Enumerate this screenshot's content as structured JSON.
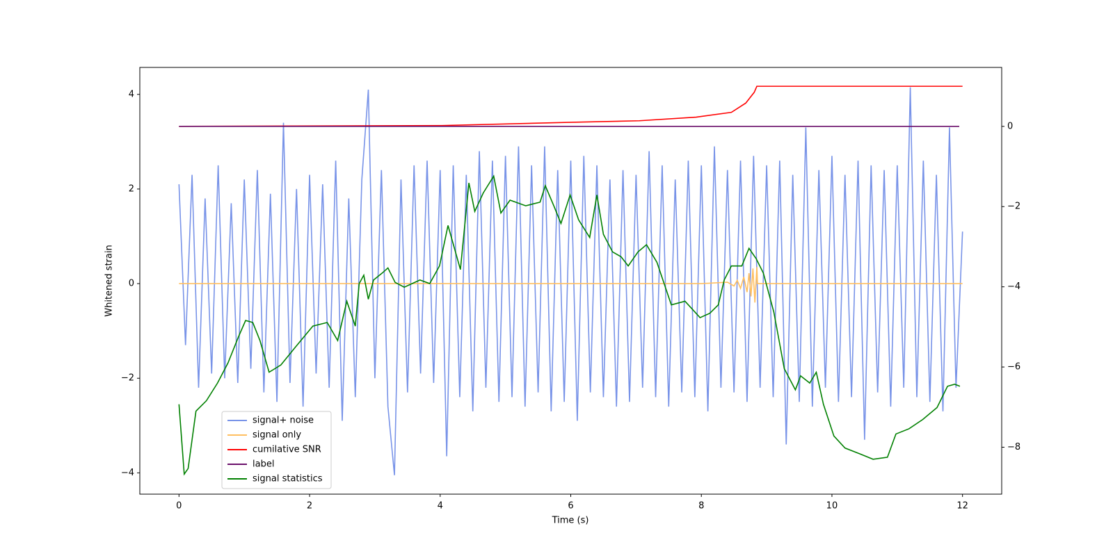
{
  "chart_data": {
    "type": "line",
    "xlabel": "Time (s)",
    "ylabel": "Whitened strain",
    "xlim": [
      -0.6,
      12.6
    ],
    "xticks": [
      0,
      2,
      4,
      6,
      8,
      10,
      12
    ],
    "ylim": [
      -4.45,
      4.57
    ],
    "yticks": [
      -4,
      -2,
      0,
      2,
      4
    ],
    "y2lim": [
      -9.17,
      1.47
    ],
    "y2ticks": [
      -8,
      -6,
      -4,
      -2,
      0
    ],
    "legend": "lower left",
    "series": [
      {
        "name": "signal+ noise",
        "color": "#7893e8",
        "x": [
          0,
          0.1,
          0.2,
          0.3,
          0.4,
          0.5,
          0.6,
          0.7,
          0.8,
          0.9,
          1,
          1.1,
          1.2,
          1.3,
          1.4,
          1.5,
          1.6,
          1.7,
          1.8,
          1.9,
          2,
          2.1,
          2.2,
          2.3,
          2.4,
          2.5,
          2.6,
          2.7,
          2.8,
          2.9,
          3,
          3.1,
          3.2,
          3.3,
          3.4,
          3.5,
          3.6,
          3.7,
          3.8,
          3.9,
          4,
          4.1,
          4.2,
          4.3,
          4.4,
          4.5,
          4.6,
          4.7,
          4.8,
          4.9,
          5,
          5.1,
          5.2,
          5.3,
          5.4,
          5.5,
          5.6,
          5.7,
          5.8,
          5.9,
          6,
          6.1,
          6.2,
          6.3,
          6.4,
          6.5,
          6.6,
          6.7,
          6.8,
          6.9,
          7,
          7.1,
          7.2,
          7.3,
          7.4,
          7.5,
          7.6,
          7.7,
          7.8,
          7.9,
          8,
          8.1,
          8.2,
          8.3,
          8.4,
          8.5,
          8.6,
          8.7,
          8.8,
          8.9,
          9,
          9.1,
          9.2,
          9.3,
          9.4,
          9.5,
          9.6,
          9.7,
          9.8,
          9.9,
          10,
          10.1,
          10.2,
          10.3,
          10.4,
          10.5,
          10.6,
          10.7,
          10.8,
          10.9,
          11,
          11.1,
          11.2,
          11.3,
          11.4,
          11.5,
          11.6,
          11.7,
          11.8,
          11.9,
          12
        ],
        "values": [
          2.1,
          -1.3,
          2.3,
          -2.2,
          1.8,
          -1.9,
          2.5,
          -2.0,
          1.7,
          -2.1,
          2.2,
          -1.8,
          2.4,
          -2.3,
          1.9,
          -2.5,
          3.4,
          -2.1,
          2.0,
          -2.6,
          2.3,
          -1.9,
          2.1,
          -2.2,
          2.6,
          -2.9,
          1.8,
          -2.4,
          2.2,
          4.1,
          -2.0,
          2.4,
          -2.6,
          -4.05,
          2.2,
          -2.3,
          2.5,
          -1.9,
          2.6,
          -2.1,
          2.4,
          -3.65,
          2.5,
          -2.4,
          2.3,
          -2.7,
          2.8,
          -2.2,
          2.6,
          -2.5,
          2.7,
          -2.4,
          2.9,
          -2.6,
          2.5,
          -2.3,
          2.9,
          -2.7,
          2.4,
          -2.5,
          2.6,
          -2.9,
          2.7,
          -2.3,
          2.5,
          -2.4,
          2.2,
          -2.6,
          2.4,
          -2.5,
          2.3,
          -2.2,
          2.8,
          -2.4,
          2.5,
          -2.6,
          2.2,
          -2.3,
          2.6,
          -2.4,
          2.5,
          -2.7,
          2.9,
          -2.2,
          2.4,
          -2.3,
          2.6,
          -2.5,
          2.7,
          -2.2,
          2.5,
          -2.4,
          2.6,
          -3.4,
          2.3,
          -2.5,
          3.3,
          -2.6,
          2.4,
          -2.2,
          2.7,
          -2.5,
          2.3,
          -2.4,
          2.6,
          -3.3,
          2.5,
          -2.3,
          2.4,
          -2.6,
          2.5,
          -2.2,
          4.15,
          -2.4,
          2.6,
          -2.5,
          2.3,
          -2.7,
          3.3,
          -2.2,
          1.1
        ]
      },
      {
        "name": "signal only",
        "color": "#ffbf60",
        "x": [
          0,
          8,
          8.4,
          8.5,
          8.55,
          8.6,
          8.65,
          8.7,
          8.73,
          8.76,
          8.79,
          8.82,
          8.85,
          8.86,
          12
        ],
        "values": [
          0,
          0,
          0.03,
          -0.05,
          0.07,
          -0.1,
          0.14,
          -0.18,
          0.22,
          -0.27,
          0.32,
          -0.4,
          0.35,
          0,
          0
        ]
      },
      {
        "name": "cumilative SNR",
        "color": "#ff0000",
        "axis": "y2",
        "x": [
          0,
          4,
          5.96,
          7.05,
          7.92,
          8.46,
          8.68,
          8.81,
          8.85,
          12
        ],
        "values": [
          0,
          0.02,
          0.1,
          0.14,
          0.23,
          0.35,
          0.58,
          0.85,
          1.0,
          1.0
        ]
      },
      {
        "name": "label",
        "color": "#6a0f6a",
        "axis": "y2",
        "x": [
          0,
          11.95
        ],
        "values": [
          0,
          0
        ]
      },
      {
        "name": "signal statistics",
        "color": "#008000",
        "axis": "y2",
        "x": [
          0,
          0.08,
          0.14,
          0.26,
          0.42,
          0.59,
          0.75,
          0.91,
          1.02,
          1.13,
          1.24,
          1.38,
          1.56,
          1.78,
          2.05,
          2.27,
          2.43,
          2.57,
          2.7,
          2.76,
          2.83,
          2.9,
          2.98,
          3.11,
          3.2,
          3.31,
          3.45,
          3.69,
          3.84,
          3.99,
          4.12,
          4.31,
          4.44,
          4.53,
          4.66,
          4.82,
          4.93,
          5.07,
          5.31,
          5.53,
          5.61,
          5.74,
          5.85,
          5.99,
          6.12,
          6.29,
          6.4,
          6.5,
          6.64,
          6.77,
          6.88,
          7.03,
          7.16,
          7.32,
          7.54,
          7.75,
          7.98,
          8.13,
          8.26,
          8.35,
          8.46,
          8.62,
          8.73,
          8.84,
          8.95,
          9.11,
          9.27,
          9.44,
          9.52,
          9.66,
          9.76,
          9.87,
          10.03,
          10.2,
          10.42,
          10.63,
          10.85,
          10.98,
          11.18,
          11.39,
          11.61,
          11.77,
          11.88,
          11.96
        ],
        "values": [
          -6.93,
          -8.67,
          -8.53,
          -7.1,
          -6.84,
          -6.4,
          -5.9,
          -5.25,
          -4.84,
          -4.89,
          -5.34,
          -6.13,
          -5.95,
          -5.51,
          -4.98,
          -4.89,
          -5.34,
          -4.36,
          -4.98,
          -3.92,
          -3.71,
          -4.31,
          -3.83,
          -3.66,
          -3.53,
          -3.89,
          -4.01,
          -3.83,
          -3.92,
          -3.48,
          -2.47,
          -3.57,
          -1.41,
          -2.12,
          -1.66,
          -1.24,
          -2.16,
          -1.84,
          -1.98,
          -1.89,
          -1.48,
          -1.98,
          -2.42,
          -1.71,
          -2.33,
          -2.77,
          -1.71,
          -2.69,
          -3.13,
          -3.25,
          -3.48,
          -3.13,
          -2.95,
          -3.39,
          -4.45,
          -4.36,
          -4.77,
          -4.66,
          -4.45,
          -3.83,
          -3.48,
          -3.48,
          -3.04,
          -3.3,
          -3.66,
          -4.63,
          -6.04,
          -6.57,
          -6.22,
          -6.4,
          -6.13,
          -6.93,
          -7.72,
          -8.02,
          -8.16,
          -8.3,
          -8.25,
          -7.67,
          -7.54,
          -7.31,
          -7.01,
          -6.48,
          -6.43,
          -6.48
        ]
      }
    ]
  }
}
